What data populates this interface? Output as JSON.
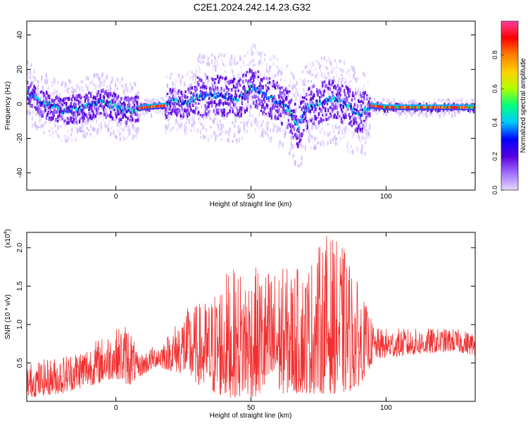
{
  "title": "C2E1.2024.242.14.23.G32",
  "chart_data": [
    {
      "type": "heatmap",
      "xlabel": "Height of straight line (km)",
      "ylabel": "Frequency (Hz)",
      "xlim": [
        -33,
        133
      ],
      "ylim": [
        -50,
        48
      ],
      "xticks": [
        0,
        50,
        100
      ],
      "yticks": [
        40,
        20,
        0,
        -20,
        -40
      ],
      "colorbar": {
        "label": "Normalized spectral amplitude",
        "range": [
          0,
          1
        ],
        "ticks": [
          "0.0",
          "0.2",
          "0.4",
          "0.6",
          "0.8"
        ],
        "colors": [
          "#e6d9ff",
          "#a070ff",
          "#5a00e0",
          "#0000ff",
          "#00c8ff",
          "#00ff80",
          "#b0ff00",
          "#ffd000",
          "#ff8000",
          "#ff0000",
          "#ff40a0"
        ]
      },
      "center_track": [
        {
          "x": -33,
          "y": 7
        },
        {
          "x": -28,
          "y": 1
        },
        {
          "x": -20,
          "y": -4
        },
        {
          "x": -12,
          "y": -2
        },
        {
          "x": -5,
          "y": 1
        },
        {
          "x": 0,
          "y": -2
        },
        {
          "x": 5,
          "y": -4
        },
        {
          "x": 10,
          "y": -2
        },
        {
          "x": 18,
          "y": -1
        },
        {
          "x": 20,
          "y": 2
        },
        {
          "x": 25,
          "y": 0
        },
        {
          "x": 30,
          "y": 4
        },
        {
          "x": 38,
          "y": 5
        },
        {
          "x": 45,
          "y": 3
        },
        {
          "x": 50,
          "y": 10
        },
        {
          "x": 55,
          "y": 5
        },
        {
          "x": 60,
          "y": 1
        },
        {
          "x": 64,
          "y": -4
        },
        {
          "x": 67,
          "y": -14
        },
        {
          "x": 70,
          "y": -3
        },
        {
          "x": 75,
          "y": 1
        },
        {
          "x": 80,
          "y": 3
        },
        {
          "x": 85,
          "y": -1
        },
        {
          "x": 90,
          "y": -6
        },
        {
          "x": 94,
          "y": -1
        },
        {
          "x": 100,
          "y": -2
        },
        {
          "x": 110,
          "y": -2
        },
        {
          "x": 120,
          "y": -2
        },
        {
          "x": 133,
          "y": -2
        }
      ]
    },
    {
      "type": "line",
      "xlabel": "Height of straight line (km)",
      "ylabel": "SNR (10 * v/v)",
      "multiplier": "(x10^4)",
      "xlim": [
        -33,
        133
      ],
      "ylim": [
        0,
        2.2
      ],
      "xticks": [
        0,
        50,
        100
      ],
      "yticks": [
        "0.5",
        "1.0",
        "1.5",
        "2.0"
      ],
      "color": "#f03030",
      "series": [
        {
          "values_envelope": [
            {
              "x": -33,
              "low": 0.05,
              "high": 0.5
            },
            {
              "x": -20,
              "low": 0.1,
              "high": 0.6
            },
            {
              "x": -10,
              "low": 0.2,
              "high": 0.75
            },
            {
              "x": 0,
              "low": 0.3,
              "high": 0.95
            },
            {
              "x": 5,
              "low": 0.2,
              "high": 1.05
            },
            {
              "x": 8,
              "low": 0.3,
              "high": 0.6
            },
            {
              "x": 15,
              "low": 0.45,
              "high": 0.75
            },
            {
              "x": 20,
              "low": 0.4,
              "high": 0.9
            },
            {
              "x": 25,
              "low": 0.35,
              "high": 1.2
            },
            {
              "x": 35,
              "low": 0.1,
              "high": 1.35
            },
            {
              "x": 40,
              "low": 0.05,
              "high": 1.7
            },
            {
              "x": 50,
              "low": 0.05,
              "high": 1.75
            },
            {
              "x": 60,
              "low": 0.1,
              "high": 1.75
            },
            {
              "x": 70,
              "low": 0.1,
              "high": 1.75
            },
            {
              "x": 78,
              "low": 0.1,
              "high": 2.2
            },
            {
              "x": 85,
              "low": 0.1,
              "high": 2.0
            },
            {
              "x": 90,
              "low": 0.2,
              "high": 1.5
            },
            {
              "x": 96,
              "low": 0.55,
              "high": 0.95
            },
            {
              "x": 110,
              "low": 0.6,
              "high": 0.95
            },
            {
              "x": 125,
              "low": 0.65,
              "high": 0.95
            },
            {
              "x": 133,
              "low": 0.6,
              "high": 0.9
            }
          ]
        }
      ]
    }
  ]
}
